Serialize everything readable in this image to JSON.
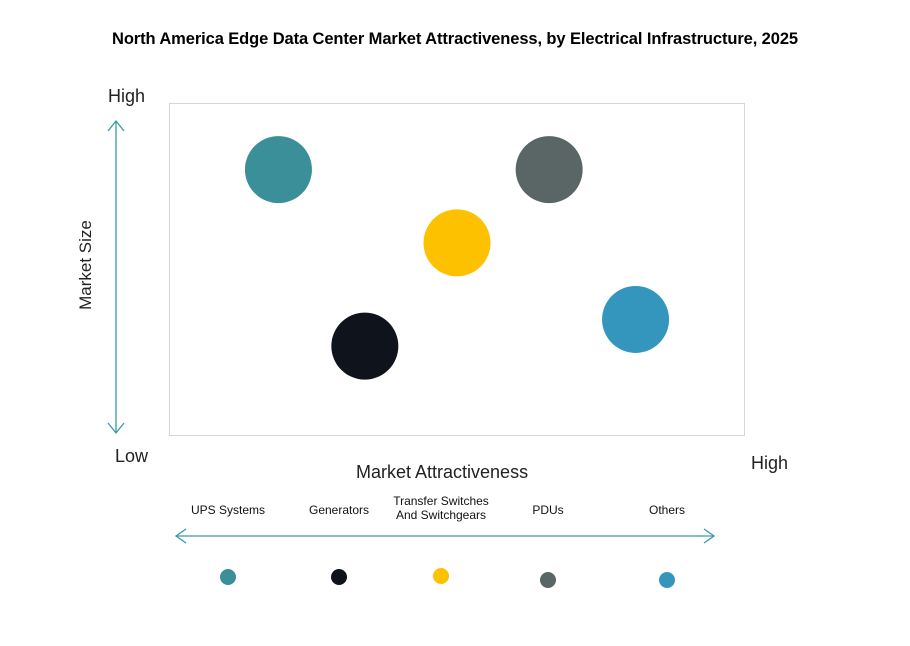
{
  "title": "North America Edge Data Center Market Attractiveness,  by Electrical Infrastructure, 2025",
  "axis": {
    "y_label": "Market Size",
    "y_high": "High",
    "y_low": "Low",
    "x_label": "Market Attractiveness",
    "x_high": "High"
  },
  "chart_data": {
    "type": "scatter",
    "title": "North America Edge Data Center Market Attractiveness,  by Electrical Infrastructure, 2025",
    "xlabel": "Market Attractiveness",
    "ylabel": "Market Size",
    "xlim": [
      0,
      10
    ],
    "ylim": [
      0,
      10
    ],
    "grid": false,
    "legend_placement": "bottom",
    "series": [
      {
        "name": "UPS Systems",
        "x": 1.9,
        "y": 8.0,
        "color": "#3a8f98"
      },
      {
        "name": "Generators",
        "x": 3.4,
        "y": 2.7,
        "color": "#0f141c"
      },
      {
        "name": "Transfer Switches And Switchgears",
        "x": 5.0,
        "y": 5.8,
        "color": "#fdc100"
      },
      {
        "name": "PDUs",
        "x": 6.6,
        "y": 8.0,
        "color": "#5a6566"
      },
      {
        "name": "Others",
        "x": 8.1,
        "y": 3.5,
        "color": "#3596bd"
      }
    ]
  },
  "legend": [
    {
      "label_lines": [
        "UPS Systems"
      ],
      "color": "#3a8f98"
    },
    {
      "label_lines": [
        "Generators"
      ],
      "color": "#0f141c"
    },
    {
      "label_lines": [
        "Transfer Switches",
        "And Switchgears"
      ],
      "color": "#fdc100"
    },
    {
      "label_lines": [
        "PDUs"
      ],
      "color": "#5a6566"
    },
    {
      "label_lines": [
        "Others"
      ],
      "color": "#3596bd"
    }
  ],
  "arrow_color": "#3a9aa6"
}
